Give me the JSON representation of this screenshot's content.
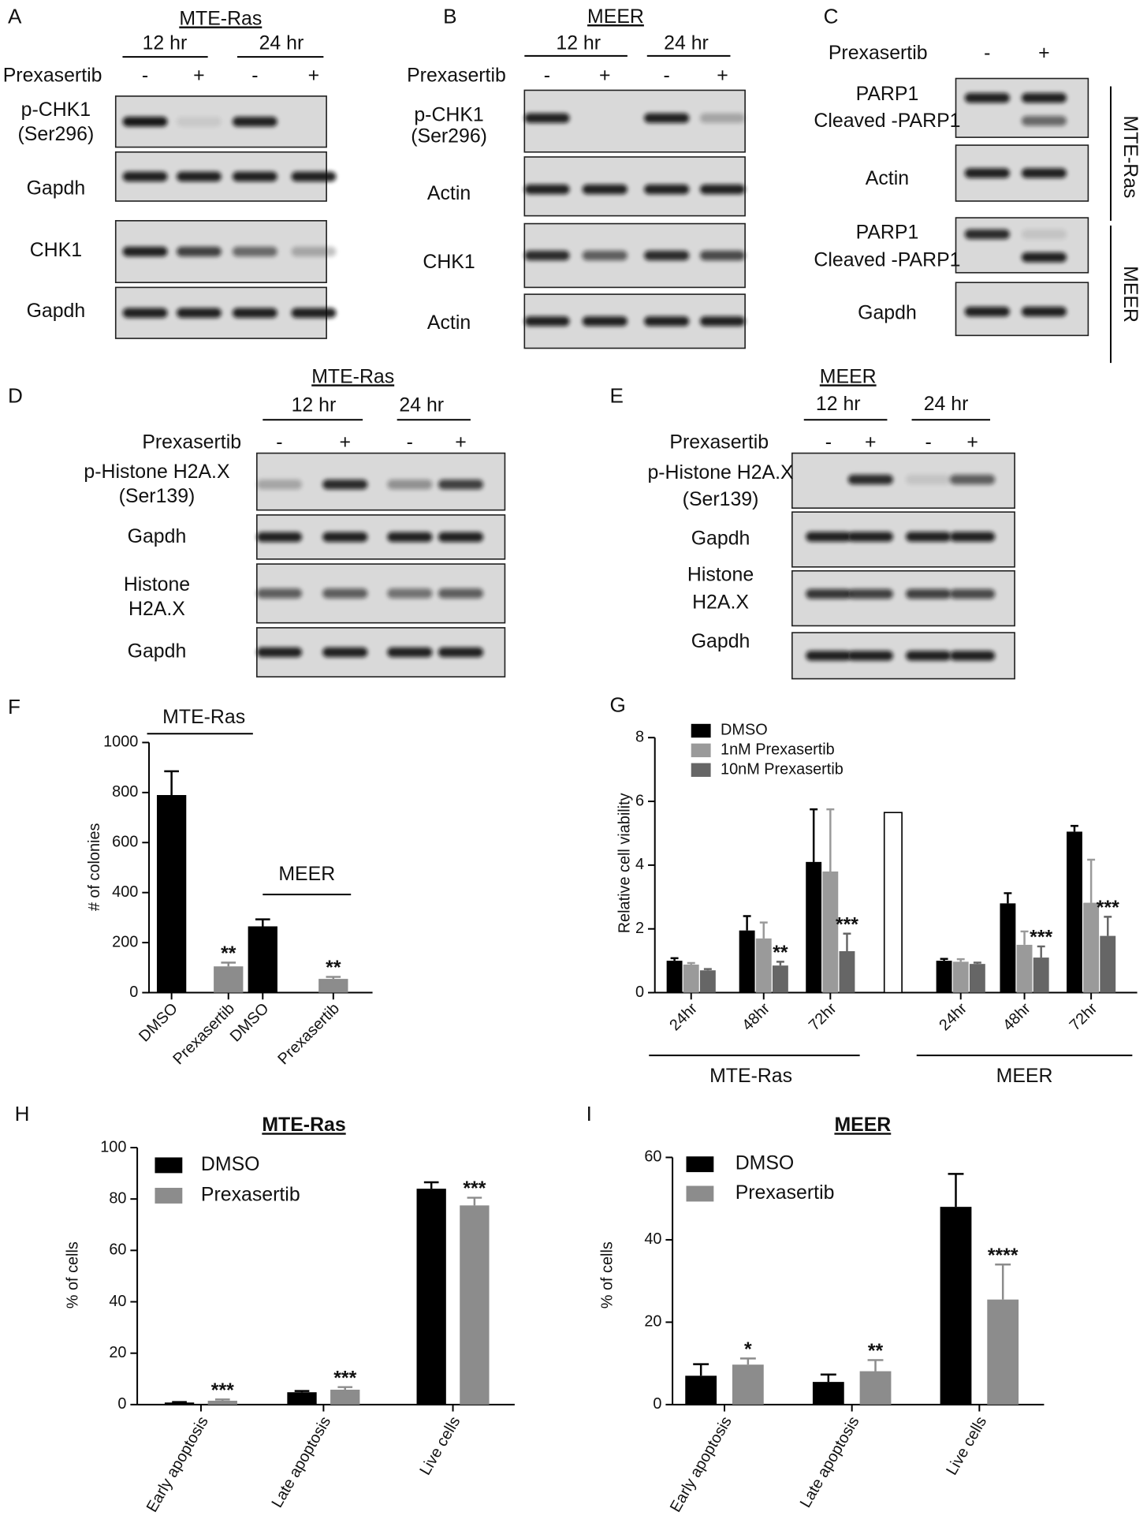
{
  "panels": {
    "A": {
      "letter": "A",
      "header": "MTE-Ras",
      "times": [
        "12 hr",
        "24 hr"
      ],
      "treatment": "Prexasertib",
      "signs": [
        "-",
        "+",
        "-",
        "+"
      ],
      "rows": [
        {
          "lines": [
            "p-CHK1",
            "(Ser296)"
          ]
        },
        {
          "lines": [
            "Gapdh"
          ]
        },
        {
          "lines": [
            "CHK1"
          ]
        },
        {
          "lines": [
            "Gapdh"
          ]
        }
      ]
    },
    "B": {
      "letter": "B",
      "header": "MEER",
      "times": [
        "12 hr",
        "24 hr"
      ],
      "treatment": "Prexasertib",
      "signs": [
        "-",
        "+",
        "-",
        "+"
      ],
      "rows": [
        {
          "lines": [
            "p-CHK1",
            "(Ser296)"
          ]
        },
        {
          "lines": [
            "Actin"
          ]
        },
        {
          "lines": [
            "CHK1"
          ]
        },
        {
          "lines": [
            "Actin"
          ]
        }
      ]
    },
    "C": {
      "letter": "C",
      "treatment": "Prexasertib",
      "signs": [
        "-",
        "+"
      ],
      "rows": [
        {
          "lines": [
            "PARP1",
            "Cleaved -PARP1"
          ]
        },
        {
          "lines": [
            "Actin"
          ]
        },
        {
          "lines": [
            "PARP1",
            "Cleaved -PARP1"
          ]
        },
        {
          "lines": [
            "Gapdh"
          ]
        }
      ],
      "side_labels": [
        "MTE-Ras",
        "MEER"
      ]
    },
    "D": {
      "letter": "D",
      "header": "MTE-Ras",
      "times": [
        "12 hr",
        "24 hr"
      ],
      "treatment": "Prexasertib",
      "signs": [
        "-",
        "+",
        "-",
        "+"
      ],
      "rows": [
        {
          "lines": [
            "p-Histone H2A.X",
            "(Ser139)"
          ]
        },
        {
          "lines": [
            "Gapdh"
          ]
        },
        {
          "lines": [
            "Histone",
            "H2A.X"
          ]
        },
        {
          "lines": [
            "Gapdh"
          ]
        }
      ]
    },
    "E": {
      "letter": "E",
      "header": "MEER",
      "times": [
        "12 hr",
        "24 hr"
      ],
      "treatment": "Prexasertib",
      "signs": [
        "-",
        "+",
        "-",
        "+"
      ],
      "rows": [
        {
          "lines": [
            "p-Histone H2A.X",
            "(Ser139)"
          ]
        },
        {
          "lines": [
            "Gapdh"
          ]
        },
        {
          "lines": [
            "Histone",
            "H2A.X"
          ]
        },
        {
          "lines": [
            "Gapdh"
          ]
        }
      ]
    }
  },
  "chart_data": [
    {
      "type": "bar",
      "letter": "F",
      "ylabel": "# of colonies",
      "categories": [
        "DMSO",
        "Prexasertib",
        "DMSO",
        "Prexasertib"
      ],
      "series": [
        {
          "values": [
            790,
            105,
            265,
            55
          ],
          "errors": [
            95,
            15,
            28,
            8
          ],
          "colors": [
            "#000000",
            "#8c8c8c",
            "#000000",
            "#8c8c8c"
          ],
          "annotations": [
            null,
            "**",
            null,
            "**"
          ]
        }
      ],
      "groups": [
        "MTE-Ras",
        "MEER"
      ],
      "ylim": [
        0,
        1000
      ],
      "yticks": [
        0,
        200,
        400,
        600,
        800,
        1000
      ]
    },
    {
      "type": "bar",
      "letter": "G",
      "ylabel": "Relative cell viability",
      "categories": [
        "24hr",
        "48hr",
        "72hr",
        null,
        "24hr",
        "48hr",
        "72hr"
      ],
      "series": [
        {
          "name": "DMSO",
          "color": "#000000",
          "values": [
            1.0,
            1.95,
            4.1,
            null,
            1.0,
            2.8,
            5.05
          ],
          "errors": [
            0.08,
            0.45,
            1.65,
            null,
            0.06,
            0.32,
            0.18
          ],
          "annotations": [
            null,
            null,
            null,
            null,
            null,
            null,
            null
          ]
        },
        {
          "name": "1nM Prexasertib",
          "color": "#9a9a9a",
          "values": [
            0.88,
            1.7,
            3.8,
            null,
            0.97,
            1.5,
            2.82
          ],
          "errors": [
            0.05,
            0.5,
            1.95,
            null,
            0.08,
            0.42,
            1.35
          ],
          "annotations": [
            null,
            null,
            null,
            null,
            null,
            null,
            null
          ]
        },
        {
          "name": "10nM Prexasertib",
          "color": "#666666",
          "values": [
            0.7,
            0.85,
            1.3,
            null,
            0.9,
            1.1,
            1.78
          ],
          "errors": [
            0.04,
            0.12,
            0.55,
            null,
            0.04,
            0.35,
            0.6
          ],
          "annotations": [
            null,
            "**",
            "***",
            null,
            null,
            "***",
            "***"
          ]
        }
      ],
      "extra_bar": {
        "value": 5.65,
        "color": "#ffffff"
      },
      "groups": [
        "MTE-Ras",
        "MEER"
      ],
      "ylim": [
        0,
        8
      ],
      "yticks": [
        0,
        2,
        4,
        6,
        8
      ]
    },
    {
      "type": "bar",
      "letter": "H",
      "title": "MTE-Ras",
      "ylabel": "% of cells",
      "categories": [
        "Early apoptosis",
        "Late apoptosis",
        "Live cells"
      ],
      "series": [
        {
          "name": "DMSO",
          "color": "#000000",
          "values": [
            0.8,
            4.8,
            84
          ],
          "errors": [
            0.2,
            0.5,
            2.5
          ],
          "annotations": [
            null,
            null,
            null
          ]
        },
        {
          "name": "Prexasertib",
          "color": "#8c8c8c",
          "values": [
            1.5,
            5.8,
            77.5
          ],
          "errors": [
            0.5,
            1,
            3
          ],
          "annotations": [
            "***",
            "***",
            "***"
          ]
        }
      ],
      "ylim": [
        0,
        100
      ],
      "yticks": [
        0,
        20,
        40,
        60,
        80,
        100
      ]
    },
    {
      "type": "bar",
      "letter": "I",
      "title": "MEER",
      "ylabel": "% of cells",
      "categories": [
        "Early apoptosis",
        "Late apoptosis",
        "Live cells"
      ],
      "series": [
        {
          "name": "DMSO",
          "color": "#000000",
          "values": [
            7,
            5.5,
            48
          ],
          "errors": [
            2.8,
            1.8,
            8
          ],
          "annotations": [
            null,
            null,
            null
          ]
        },
        {
          "name": "Prexasertib",
          "color": "#8c8c8c",
          "values": [
            9.7,
            8.1,
            25.5
          ],
          "errors": [
            1.5,
            2.7,
            8.5
          ],
          "annotations": [
            "*",
            "**",
            "****"
          ]
        }
      ],
      "ylim": [
        0,
        60
      ],
      "yticks": [
        0,
        20,
        40,
        60
      ]
    }
  ]
}
